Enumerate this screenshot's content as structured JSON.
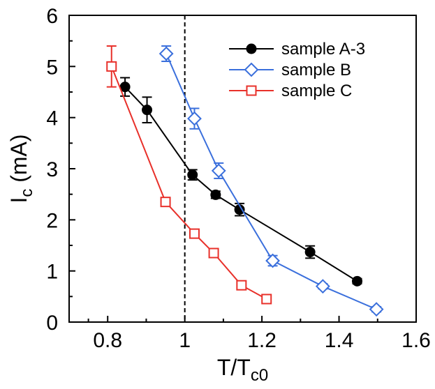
{
  "chart_data": {
    "type": "line",
    "title": "",
    "xlabel": {
      "main": "T/T",
      "sub": "c0"
    },
    "ylabel": {
      "main": "I",
      "sub": "c",
      "unit": " (mA)"
    },
    "xlim": [
      0.7,
      1.6
    ],
    "ylim": [
      0,
      6
    ],
    "x_ticks": [
      0.8,
      1.0,
      1.2,
      1.4,
      1.6
    ],
    "x_tick_labels": [
      "0.8",
      "1",
      "1.2",
      "1.4",
      "1.6"
    ],
    "y_ticks": [
      0,
      1,
      2,
      3,
      4,
      5,
      6
    ],
    "y_tick_labels": [
      "0",
      "1",
      "2",
      "3",
      "4",
      "5",
      "6"
    ],
    "reference_line": {
      "x": 1.0,
      "style": "dashed"
    },
    "legend_position": "top-right",
    "series": [
      {
        "name": "sample A-3",
        "color": "#000000",
        "marker": "filled-circle",
        "x": [
          0.845,
          0.902,
          1.02,
          1.08,
          1.142,
          1.325,
          1.447
        ],
        "y": [
          4.6,
          4.15,
          2.88,
          2.49,
          2.2,
          1.37,
          0.8
        ],
        "yerr": [
          0.18,
          0.25,
          0.1,
          0.07,
          0.12,
          0.12,
          0.05
        ]
      },
      {
        "name": "sample B",
        "color": "#3a6fdc",
        "marker": "open-diamond",
        "x": [
          0.952,
          1.025,
          1.088,
          1.228,
          1.358,
          1.497
        ],
        "y": [
          5.25,
          3.98,
          2.96,
          1.2,
          0.7,
          0.25
        ],
        "yerr": [
          0.15,
          0.2,
          0.15,
          0.1,
          0.05,
          0.05
        ]
      },
      {
        "name": "sample C",
        "color": "#e8302a",
        "marker": "open-square",
        "x": [
          0.81,
          0.95,
          1.025,
          1.075,
          1.147,
          1.212
        ],
        "y": [
          5.0,
          2.35,
          1.73,
          1.35,
          0.72,
          0.45
        ],
        "yerr": [
          0.4,
          0.08,
          0.05,
          0.05,
          0.05,
          0.05
        ]
      }
    ]
  }
}
